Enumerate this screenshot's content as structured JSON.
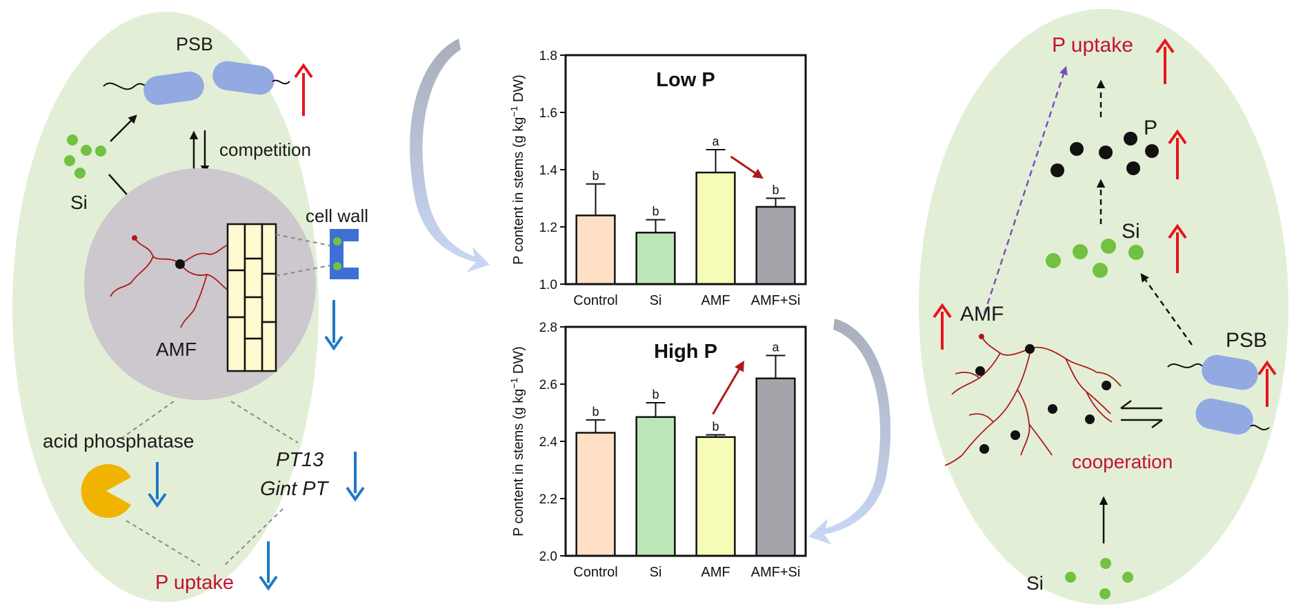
{
  "left_panel": {
    "psb_label": "PSB",
    "si_label": "Si",
    "competition_label": "competition",
    "cell_wall_label": "cell wall",
    "amf_label": "AMF",
    "acid_phosphatase_label": "acid phosphatase",
    "pt13_label": "PT13",
    "gint_pt_label": "Gint PT",
    "p_uptake_label": "P uptake"
  },
  "right_panel": {
    "p_uptake_label": "P uptake",
    "p_label": "P",
    "si_label": "Si",
    "amf_label": "AMF",
    "psb_label": "PSB",
    "cooperation_label": "cooperation",
    "si_bottom_label": "Si"
  },
  "colors": {
    "panel_fill": "#e2efd6",
    "gray_circle": "#cdc8cd",
    "bacteria": "#93a9e2",
    "hyphae": "#b01818",
    "red_arrow": "#e8141e",
    "blue_arrow": "#1e78c8",
    "si_dot": "#72c142",
    "enzyme": "#f0b400",
    "cell": "#fffad0",
    "cell_wall": "#3f6fd4"
  },
  "chart_data": [
    {
      "type": "bar",
      "title": "Low P",
      "categories": [
        "Control",
        "Si",
        "AMF",
        "AMF+Si"
      ],
      "values": [
        1.24,
        1.18,
        1.39,
        1.27
      ],
      "errors": [
        0.11,
        0.045,
        0.08,
        0.03
      ],
      "letters": [
        "b",
        "b",
        "a",
        "b"
      ],
      "bar_colors": [
        "#fde0c6",
        "#bde6b8",
        "#f6fcb8",
        "#a4a4aa"
      ],
      "ylabel": "P content in stems (g kg",
      "ylabel_sup": "−1",
      "ylabel_tail": " DW)",
      "ylim": [
        1.0,
        1.8
      ],
      "yticks": [
        "1.0",
        "1.2",
        "1.4",
        "1.6",
        "1.8"
      ],
      "trend": "decrease"
    },
    {
      "type": "bar",
      "title": "High P",
      "categories": [
        "Control",
        "Si",
        "AMF",
        "AMF+Si"
      ],
      "values": [
        2.43,
        2.485,
        2.415,
        2.62
      ],
      "errors": [
        0.045,
        0.05,
        0.008,
        0.08
      ],
      "letters": [
        "b",
        "b",
        "b",
        "a"
      ],
      "bar_colors": [
        "#fde0c6",
        "#bde6b8",
        "#f6fcb8",
        "#a4a4aa"
      ],
      "ylabel": "P content in stems (g kg",
      "ylabel_sup": "−1",
      "ylabel_tail": " DW)",
      "ylim": [
        2.0,
        2.8
      ],
      "yticks": [
        "2.0",
        "2.2",
        "2.4",
        "2.6",
        "2.8"
      ],
      "trend": "increase"
    }
  ]
}
